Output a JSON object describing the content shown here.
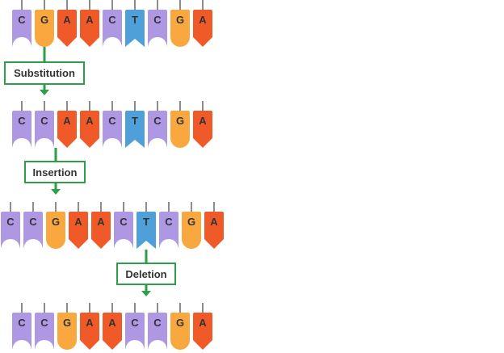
{
  "colors": {
    "C": "#ae98e4",
    "G": "#f9a840",
    "A": "#f05a28",
    "T": "#4f9fd8",
    "connector": "#2e9e48",
    "stem": "#666666",
    "letter": "#333333"
  },
  "sequences": [
    {
      "bases": [
        "C",
        "G",
        "A",
        "A",
        "C",
        "T",
        "C",
        "G",
        "A"
      ]
    },
    {
      "bases": [
        "C",
        "C",
        "A",
        "A",
        "C",
        "T",
        "C",
        "G",
        "A"
      ]
    },
    {
      "bases": [
        "C",
        "C",
        "G",
        "A",
        "A",
        "C",
        "T",
        "C",
        "G",
        "A"
      ]
    },
    {
      "bases": [
        "C",
        "C",
        "G",
        "A",
        "A",
        "C",
        "C",
        "G",
        "A"
      ]
    }
  ],
  "mutations": [
    {
      "label": "Substitution"
    },
    {
      "label": "Insertion"
    },
    {
      "label": "Deletion"
    }
  ]
}
